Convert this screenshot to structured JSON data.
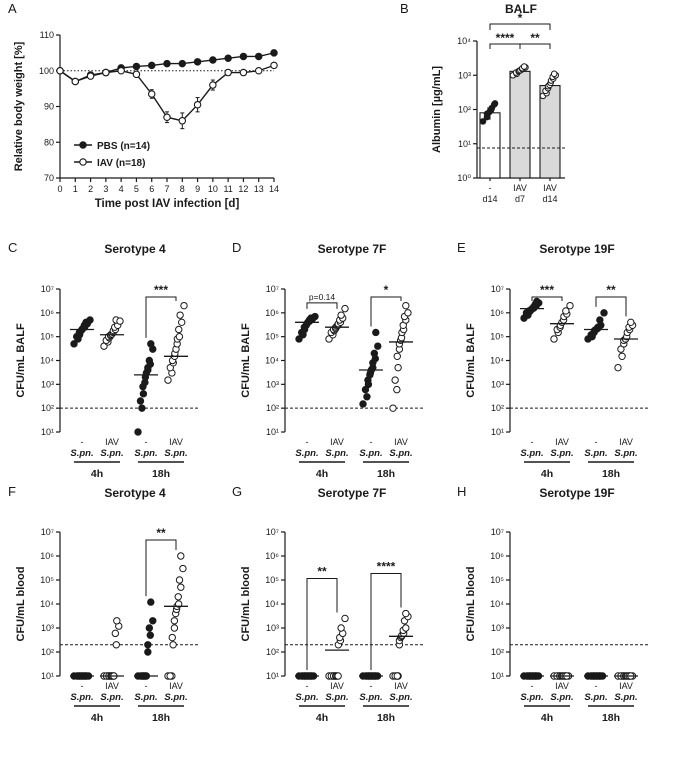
{
  "chart_data": [
    {
      "panel": "A",
      "type": "line",
      "xlabel": "Time post IAV infection [d]",
      "ylabel": "Relative body weight [%]",
      "xlim": [
        0,
        14
      ],
      "ylim": [
        70,
        110
      ],
      "x_ticks": [
        0,
        1,
        2,
        3,
        4,
        5,
        6,
        7,
        8,
        9,
        10,
        11,
        12,
        13,
        14
      ],
      "y_ticks": [
        70,
        80,
        90,
        100,
        110
      ],
      "reference_line": 100,
      "x": [
        0,
        1,
        2,
        3,
        4,
        5,
        6,
        7,
        8,
        9,
        10,
        11,
        12,
        13,
        14
      ],
      "series": [
        {
          "name": "PBS (n=14)",
          "marker": "filled",
          "values": [
            100,
            97,
            98.8,
            99.5,
            100.8,
            101.2,
            101.5,
            102,
            102,
            102.5,
            103,
            103.5,
            104,
            104,
            105
          ],
          "errors": [
            0,
            0.6,
            0.5,
            0.5,
            0.5,
            0.5,
            0.5,
            0.5,
            0.5,
            0.5,
            0.5,
            0.5,
            0.5,
            0.6,
            0.8
          ]
        },
        {
          "name": "IAV (n=18)",
          "marker": "open",
          "values": [
            100,
            97,
            98.5,
            99.5,
            100,
            99,
            93.5,
            87,
            86,
            90.5,
            96,
            99.5,
            99.5,
            100,
            101.5
          ],
          "errors": [
            0,
            0.6,
            0.5,
            0.5,
            0.5,
            0.6,
            1.2,
            1.5,
            2.2,
            2.0,
            1.4,
            0.8,
            0.6,
            0.6,
            0.7
          ]
        }
      ],
      "legend": [
        "PBS (n=14)",
        "IAV (n=18)"
      ]
    },
    {
      "panel": "B",
      "type": "bar",
      "title": "BALF",
      "ylabel": "Albumin [µg/mL]",
      "yscale": "log",
      "ylim": [
        1,
        10000
      ],
      "y_ticks": [
        "10⁰",
        "10¹",
        "10²",
        "10³",
        "10⁴"
      ],
      "detection_limit": 7.5,
      "categories": [
        [
          "-",
          "d14"
        ],
        [
          "IAV",
          "d7"
        ],
        [
          "IAV",
          "d14"
        ]
      ],
      "values": [
        80,
        1300,
        500
      ],
      "errors": [
        30,
        150,
        90
      ],
      "points": [
        [
          45,
          60,
          75,
          85,
          95,
          110,
          150,
          140
        ],
        [
          1000,
          1100,
          1200,
          1300,
          1350,
          1400,
          1500,
          1600,
          1700,
          1800
        ],
        [
          250,
          300,
          350,
          420,
          480,
          520,
          600,
          700,
          800,
          900,
          1000,
          1100
        ]
      ],
      "bar_colors": [
        "#ffffff",
        "#d9d9d9",
        "#d9d9d9"
      ],
      "significance": [
        {
          "from": 0,
          "to": 2,
          "label": "*"
        },
        {
          "from": 0,
          "to": 1,
          "label": "****"
        },
        {
          "from": 1,
          "to": 2,
          "label": "**"
        }
      ]
    },
    {
      "panel": "C",
      "type": "scatter",
      "title": "Serotype 4",
      "ylabel": "CFU/mL BALF",
      "yscale": "log",
      "ylim": [
        10,
        10000000
      ],
      "y_ticks": [
        "10¹",
        "10²",
        "10³",
        "10⁴",
        "10⁵",
        "10⁶",
        "10⁷"
      ],
      "detection_limit": 100,
      "categories": [
        [
          "-",
          "S.pn."
        ],
        [
          "IAV",
          "S.pn."
        ],
        [
          "-",
          "S.pn."
        ],
        [
          "IAV",
          "S.pn."
        ]
      ],
      "groups": [
        "4h",
        "18h"
      ],
      "points": [
        [
          50000,
          80000,
          100000,
          120000,
          150000,
          180000,
          200000,
          220000,
          250000,
          300000,
          350000,
          400000,
          500000
        ],
        [
          40000,
          60000,
          70000,
          90000,
          100000,
          110000,
          120000,
          130000,
          150000,
          180000,
          200000,
          250000,
          300000,
          500000,
          450000
        ],
        [
          10,
          100,
          200,
          400,
          800,
          1200,
          2000,
          3000,
          4000,
          5000,
          7000,
          10000,
          30000,
          50000
        ],
        [
          1500,
          3000,
          5000,
          8000,
          10000,
          15000,
          20000,
          30000,
          50000,
          80000,
          100000,
          200000,
          400000,
          800000,
          2000000
        ]
      ],
      "medians": [
        200000,
        120000,
        2500,
        15000
      ],
      "significance": [
        {
          "from": 2,
          "to": 3,
          "label": "***"
        }
      ]
    },
    {
      "panel": "D",
      "type": "scatter",
      "title": "Serotype 7F",
      "ylabel": "CFU/mL BALF",
      "yscale": "log",
      "ylim": [
        10,
        10000000
      ],
      "y_ticks": [
        "10¹",
        "10²",
        "10³",
        "10⁴",
        "10⁵",
        "10⁶",
        "10⁷"
      ],
      "detection_limit": 100,
      "categories": [
        [
          "-",
          "S.pn."
        ],
        [
          "IAV",
          "S.pn."
        ],
        [
          "-",
          "S.pn."
        ],
        [
          "IAV",
          "S.pn."
        ]
      ],
      "groups": [
        "4h",
        "18h"
      ],
      "points": [
        [
          80000,
          120000,
          150000,
          200000,
          250000,
          300000,
          350000,
          400000,
          450000,
          500000,
          550000,
          600000,
          700000
        ],
        [
          80000,
          120000,
          150000,
          180000,
          200000,
          220000,
          250000,
          280000,
          300000,
          350000,
          400000,
          500000,
          600000,
          800000,
          1500000
        ],
        [
          150,
          300,
          600,
          1000,
          1500,
          2500,
          3000,
          4000,
          5000,
          8000,
          12000,
          20000,
          40000,
          150000
        ],
        [
          100,
          600,
          1500,
          5000,
          15000,
          30000,
          50000,
          70000,
          90000,
          150000,
          200000,
          300000,
          500000,
          700000,
          1000000,
          2000000
        ]
      ],
      "medians": [
        400000,
        250000,
        4000,
        60000
      ],
      "significance": [
        {
          "from": 0,
          "to": 1,
          "label": "p=0.14"
        },
        {
          "from": 2,
          "to": 3,
          "label": "*"
        }
      ]
    },
    {
      "panel": "E",
      "type": "scatter",
      "title": "Serotype 19F",
      "ylabel": "CFU/mL BALF",
      "yscale": "log",
      "ylim": [
        10,
        10000000
      ],
      "y_ticks": [
        "10¹",
        "10²",
        "10³",
        "10⁴",
        "10⁵",
        "10⁶",
        "10⁷"
      ],
      "detection_limit": 100,
      "categories": [
        [
          "-",
          "S.pn."
        ],
        [
          "IAV",
          "S.pn."
        ],
        [
          "-",
          "S.pn."
        ],
        [
          "IAV",
          "S.pn."
        ]
      ],
      "groups": [
        "4h",
        "18h"
      ],
      "points": [
        [
          600000,
          800000,
          1000000,
          1100000,
          1200000,
          1300000,
          1400000,
          1500000,
          1600000,
          1800000,
          2000000,
          2300000,
          2600000,
          3000000
        ],
        [
          80000,
          150000,
          200000,
          250000,
          300000,
          400000,
          500000,
          700000,
          900000,
          1200000,
          2000000
        ],
        [
          80000,
          100000,
          120000,
          150000,
          180000,
          200000,
          220000,
          250000,
          300000,
          500000,
          1000000
        ],
        [
          5000,
          15000,
          30000,
          50000,
          70000,
          80000,
          100000,
          150000,
          200000,
          250000,
          300000,
          400000
        ]
      ],
      "medians": [
        1500000,
        350000,
        200000,
        80000
      ],
      "significance": [
        {
          "from": 0,
          "to": 1,
          "label": "***"
        },
        {
          "from": 2,
          "to": 3,
          "label": "**"
        }
      ]
    },
    {
      "panel": "F",
      "type": "scatter",
      "title": "Serotype 4",
      "ylabel": "CFU/mL blood",
      "yscale": "log",
      "ylim": [
        10,
        10000000
      ],
      "y_ticks": [
        "10¹",
        "10²",
        "10³",
        "10⁴",
        "10⁵",
        "10⁶",
        "10⁷"
      ],
      "detection_limit": 200,
      "categories": [
        [
          "-",
          "S.pn."
        ],
        [
          "IAV",
          "S.pn."
        ],
        [
          "-",
          "S.pn."
        ],
        [
          "IAV",
          "S.pn."
        ]
      ],
      "groups": [
        "4h",
        "18h"
      ],
      "points": [
        [
          10,
          10,
          10,
          10,
          10,
          10,
          10,
          10,
          10,
          10,
          10,
          10
        ],
        [
          10,
          10,
          10,
          10,
          10,
          10,
          10,
          10,
          10,
          10,
          200,
          600,
          1200,
          2000
        ],
        [
          10,
          10,
          10,
          10,
          10,
          10,
          10,
          10,
          100,
          200,
          500,
          1000,
          2000,
          12000
        ],
        [
          10,
          10,
          10,
          200,
          400,
          1000,
          2000,
          4000,
          6000,
          8000,
          10000,
          20000,
          50000,
          100000,
          300000,
          1000000
        ]
      ],
      "medians": [
        10,
        10,
        10,
        8000
      ],
      "significance": [
        {
          "from": 2,
          "to": 3,
          "label": "**"
        }
      ]
    },
    {
      "panel": "G",
      "type": "scatter",
      "title": "Serotype 7F",
      "ylabel": "CFU/mL blood",
      "yscale": "log",
      "ylim": [
        10,
        10000000
      ],
      "y_ticks": [
        "10¹",
        "10²",
        "10³",
        "10⁴",
        "10⁵",
        "10⁶",
        "10⁷"
      ],
      "detection_limit": 200,
      "categories": [
        [
          "-",
          "S.pn."
        ],
        [
          "IAV",
          "S.pn."
        ],
        [
          "-",
          "S.pn."
        ],
        [
          "IAV",
          "S.pn."
        ]
      ],
      "groups": [
        "4h",
        "18h"
      ],
      "points": [
        [
          10,
          10,
          10,
          10,
          10,
          10,
          10,
          10,
          10,
          10,
          10,
          10
        ],
        [
          10,
          10,
          10,
          10,
          10,
          10,
          10,
          10,
          10,
          200,
          300,
          400,
          600,
          1000,
          2500
        ],
        [
          10,
          10,
          10,
          10,
          10,
          10,
          10,
          10,
          10,
          10,
          10,
          10
        ],
        [
          10,
          10,
          10,
          10,
          10,
          200,
          300,
          400,
          450,
          500,
          600,
          800,
          1000,
          2000,
          3000,
          4000
        ]
      ],
      "medians": [
        10,
        120,
        10,
        450
      ],
      "significance": [
        {
          "from": 0,
          "to": 1,
          "label": "**"
        },
        {
          "from": 2,
          "to": 3,
          "label": "****"
        }
      ]
    },
    {
      "panel": "H",
      "type": "scatter",
      "title": "Serotype 19F",
      "ylabel": "CFU/mL blood",
      "yscale": "log",
      "ylim": [
        10,
        10000000
      ],
      "y_ticks": [
        "10¹",
        "10²",
        "10³",
        "10⁴",
        "10⁵",
        "10⁶",
        "10⁷"
      ],
      "detection_limit": 200,
      "categories": [
        [
          "-",
          "S.pn."
        ],
        [
          "IAV",
          "S.pn."
        ],
        [
          "-",
          "S.pn."
        ],
        [
          "IAV",
          "S.pn."
        ]
      ],
      "groups": [
        "4h",
        "18h"
      ],
      "points": [
        [
          10,
          10,
          10,
          10,
          10,
          10,
          10,
          10,
          10,
          10,
          10,
          10
        ],
        [
          10,
          10,
          10,
          10,
          10,
          10,
          10,
          10,
          10,
          10,
          10,
          10
        ],
        [
          10,
          10,
          10,
          10,
          10,
          10,
          10,
          10,
          10,
          10,
          10,
          10
        ],
        [
          10,
          10,
          10,
          10,
          10,
          10,
          10,
          10,
          10,
          10,
          10,
          10
        ]
      ],
      "medians": [
        10,
        10,
        10,
        10
      ],
      "significance": []
    }
  ]
}
